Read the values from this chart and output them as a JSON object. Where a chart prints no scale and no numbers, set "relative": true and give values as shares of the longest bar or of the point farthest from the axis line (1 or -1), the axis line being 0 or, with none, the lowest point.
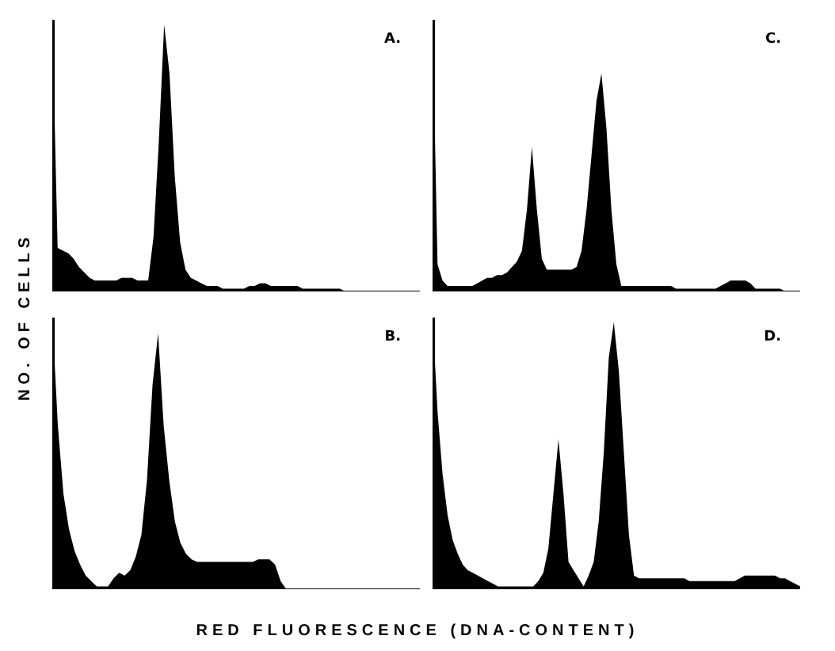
{
  "chart_data": [
    {
      "type": "area",
      "relative": true,
      "ylabel": "NO. OF CELLS",
      "annotations": [
        "A."
      ],
      "categories": [
        null,
        null,
        null,
        null,
        null,
        null,
        null,
        null,
        null,
        null,
        null,
        null,
        null,
        null,
        null,
        null,
        null,
        null,
        null,
        null,
        null,
        null,
        null,
        null,
        null,
        null,
        null,
        null,
        null,
        null,
        null,
        null,
        null,
        null,
        null,
        null,
        null,
        null,
        null,
        null,
        null,
        null,
        null,
        null,
        null,
        null,
        null,
        null,
        null,
        null,
        null,
        null,
        null,
        null,
        null,
        null,
        null,
        null,
        null,
        null,
        null,
        null,
        null,
        null,
        null,
        null,
        null,
        null,
        null,
        null
      ],
      "series": [
        {
          "color": "#000000",
          "values": [
            1.0,
            0.16,
            0.15,
            0.14,
            0.12,
            0.09,
            0.07,
            0.05,
            0.04,
            0.04,
            0.04,
            0.04,
            0.04,
            0.05,
            0.05,
            0.05,
            0.04,
            0.04,
            0.04,
            0.2,
            0.55,
            0.98,
            0.8,
            0.42,
            0.18,
            0.08,
            0.05,
            0.04,
            0.03,
            0.02,
            0.02,
            0.02,
            0.01,
            0.01,
            0.01,
            0.01,
            0.01,
            0.02,
            0.02,
            0.03,
            0.03,
            0.02,
            0.02,
            0.02,
            0.02,
            0.02,
            0.02,
            0.01,
            0.01,
            0.01,
            0.01,
            0.01,
            0.01,
            0.01,
            0.01,
            0,
            0,
            0,
            0,
            0,
            0,
            0,
            0,
            0,
            0,
            0,
            0,
            0,
            0,
            0
          ]
        }
      ]
    },
    {
      "type": "area",
      "relative": true,
      "annotations": [
        "C."
      ],
      "categories": [
        null,
        null,
        null,
        null,
        null,
        null,
        null,
        null,
        null,
        null,
        null,
        null,
        null,
        null,
        null,
        null,
        null,
        null,
        null,
        null,
        null,
        null,
        null,
        null,
        null,
        null,
        null,
        null,
        null,
        null,
        null,
        null,
        null,
        null,
        null,
        null,
        null,
        null,
        null,
        null,
        null,
        null,
        null,
        null,
        null,
        null,
        null,
        null,
        null,
        null,
        null,
        null,
        null,
        null,
        null,
        null,
        null,
        null,
        null,
        null,
        null,
        null,
        null,
        null,
        null,
        null,
        null,
        null,
        null,
        null,
        null,
        null,
        null,
        null,
        null
      ],
      "series": [
        {
          "color": "#000000",
          "values": [
            1.0,
            0.1,
            0.04,
            0.02,
            0.02,
            0.02,
            0.02,
            0.02,
            0.02,
            0.03,
            0.04,
            0.05,
            0.05,
            0.06,
            0.06,
            0.07,
            0.09,
            0.11,
            0.15,
            0.3,
            0.53,
            0.3,
            0.12,
            0.08,
            0.08,
            0.08,
            0.08,
            0.08,
            0.08,
            0.09,
            0.15,
            0.3,
            0.5,
            0.7,
            0.8,
            0.6,
            0.3,
            0.1,
            0.02,
            0.02,
            0.02,
            0.02,
            0.02,
            0.02,
            0.02,
            0.02,
            0.02,
            0.02,
            0.02,
            0.01,
            0.01,
            0.01,
            0.01,
            0.01,
            0.01,
            0.01,
            0.01,
            0.01,
            0.02,
            0.03,
            0.04,
            0.04,
            0.04,
            0.04,
            0.03,
            0.01,
            0.01,
            0.01,
            0.01,
            0.01,
            0.01,
            0,
            0,
            0,
            0
          ]
        }
      ]
    },
    {
      "type": "area",
      "relative": true,
      "xlabel": "RED FLUORESCENCE (DNA-CONTENT)",
      "annotations": [
        "B."
      ],
      "categories": [
        null,
        null,
        null,
        null,
        null,
        null,
        null,
        null,
        null,
        null,
        null,
        null,
        null,
        null,
        null,
        null,
        null,
        null,
        null,
        null,
        null,
        null,
        null,
        null,
        null,
        null,
        null,
        null,
        null,
        null,
        null,
        null,
        null,
        null,
        null,
        null,
        null,
        null,
        null,
        null,
        null,
        null,
        null,
        null,
        null,
        null,
        null,
        null,
        null,
        null,
        null,
        null,
        null,
        null,
        null,
        null,
        null,
        null,
        null,
        null,
        null,
        null,
        null,
        null,
        null,
        null,
        null
      ],
      "series": [
        {
          "color": "#000000",
          "values": [
            1.0,
            0.6,
            0.35,
            0.22,
            0.14,
            0.09,
            0.05,
            0.03,
            0.01,
            0.01,
            0.01,
            0.04,
            0.06,
            0.05,
            0.07,
            0.12,
            0.2,
            0.4,
            0.75,
            0.94,
            0.6,
            0.4,
            0.25,
            0.17,
            0.13,
            0.11,
            0.1,
            0.1,
            0.1,
            0.1,
            0.1,
            0.1,
            0.1,
            0.1,
            0.1,
            0.1,
            0.1,
            0.11,
            0.11,
            0.11,
            0.09,
            0.03,
            0,
            0,
            0,
            0,
            0,
            0,
            0,
            0,
            0,
            0,
            0,
            0,
            0,
            0,
            0,
            0,
            0,
            0,
            0,
            0,
            0,
            0,
            0,
            0,
            0
          ]
        }
      ]
    },
    {
      "type": "area",
      "relative": true,
      "annotations": [
        "D."
      ],
      "categories": [
        null,
        null,
        null,
        null,
        null,
        null,
        null,
        null,
        null,
        null,
        null,
        null,
        null,
        null,
        null,
        null,
        null,
        null,
        null,
        null,
        null,
        null,
        null,
        null,
        null,
        null,
        null,
        null,
        null,
        null,
        null,
        null,
        null,
        null,
        null,
        null,
        null,
        null,
        null,
        null,
        null,
        null,
        null,
        null,
        null,
        null,
        null,
        null,
        null,
        null,
        null,
        null,
        null,
        null,
        null,
        null,
        null,
        null,
        null,
        null,
        null,
        null,
        null,
        null,
        null,
        null,
        null,
        null,
        null,
        null,
        null,
        null,
        null,
        null
      ],
      "series": [
        {
          "color": "#000000",
          "values": [
            1.0,
            0.65,
            0.42,
            0.27,
            0.18,
            0.13,
            0.09,
            0.07,
            0.06,
            0.05,
            0.04,
            0.03,
            0.02,
            0.01,
            0.01,
            0.01,
            0.01,
            0.01,
            0.01,
            0.01,
            0.01,
            0.03,
            0.06,
            0.15,
            0.35,
            0.55,
            0.35,
            0.1,
            0.07,
            0.04,
            0.01,
            0.05,
            0.1,
            0.25,
            0.5,
            0.85,
            0.98,
            0.8,
            0.5,
            0.2,
            0.05,
            0.04,
            0.04,
            0.04,
            0.04,
            0.04,
            0.04,
            0.04,
            0.04,
            0.04,
            0.04,
            0.03,
            0.03,
            0.03,
            0.03,
            0.03,
            0.03,
            0.03,
            0.03,
            0.03,
            0.03,
            0.04,
            0.05,
            0.05,
            0.05,
            0.05,
            0.05,
            0.05,
            0.05,
            0.04,
            0.04,
            0.03,
            0.02,
            0.01
          ]
        }
      ]
    }
  ]
}
